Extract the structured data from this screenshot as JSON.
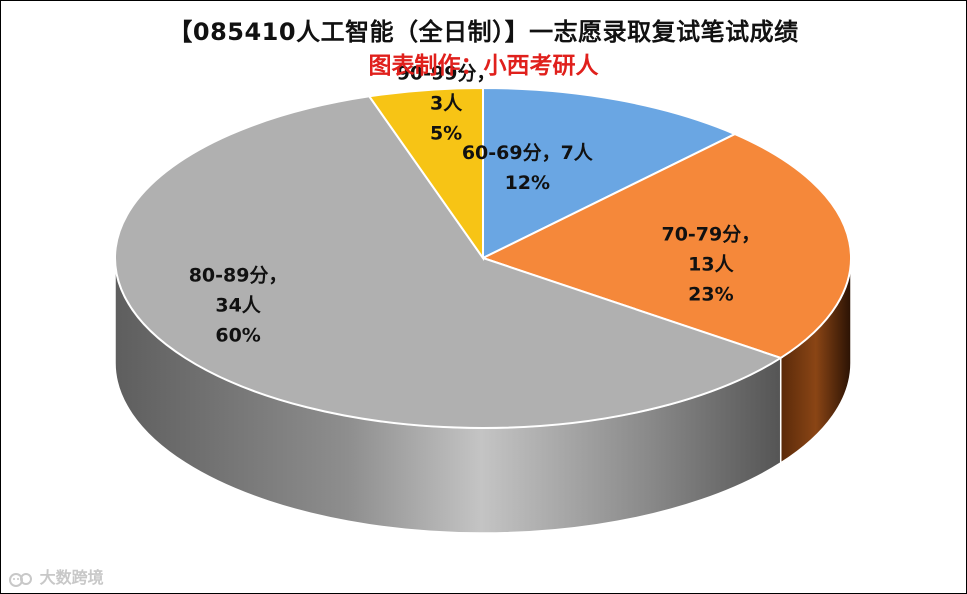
{
  "header": {
    "title": "【085410人工智能（全日制）】一志愿录取复试笔试成绩",
    "subtitle": "图表制作：小西考研人"
  },
  "watermark": {
    "text": "大数跨境",
    "icon": "cat-logo-icon"
  },
  "chart_data": {
    "type": "pie",
    "title": "【085410人工智能（全日制）】一志愿录取复试笔试成绩",
    "subtitle": "图表制作：小西考研人",
    "three_d": true,
    "slices": [
      {
        "label": "60-69分",
        "count_text": "7人",
        "count": 7,
        "percent": 12,
        "percent_text": "12%",
        "color": "#6aa6e3",
        "side_color": "#2b5a8a",
        "label_lines": [
          "60-69分，7人",
          "12%"
        ]
      },
      {
        "label": "70-79分",
        "count_text": "13人",
        "count": 13,
        "percent": 23,
        "percent_text": "23%",
        "color": "#f5883a",
        "side_color": "#6e3610",
        "label_lines": [
          "70-79分，",
          "13人",
          "23%"
        ]
      },
      {
        "label": "80-89分",
        "count_text": "34人",
        "count": 34,
        "percent": 60,
        "percent_text": "60%",
        "color": "#b0b0b0",
        "side_color": "#6c6c6c",
        "label_lines": [
          "80-89分，",
          "34人",
          "60%"
        ]
      },
      {
        "label": "90-99分",
        "count_text": "3人",
        "count": 3,
        "percent": 5,
        "percent_text": "5%",
        "color": "#f7c415",
        "side_color": "#8a6a00",
        "label_lines": [
          "90-99分，",
          "3人",
          "5%"
        ]
      }
    ]
  }
}
